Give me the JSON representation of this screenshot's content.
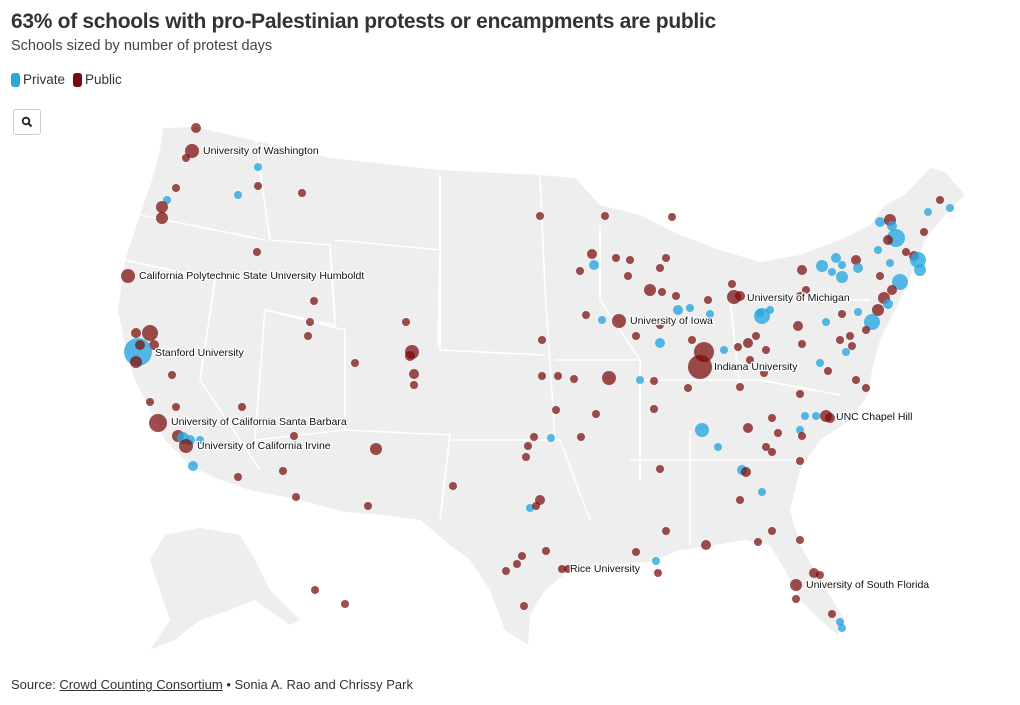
{
  "header": {
    "title": "63% of schools with pro-Palestinian protests or encampments are public",
    "subtitle": "Schools sized by number of protest days"
  },
  "legend": [
    {
      "label": "Private",
      "color": "#29a8e0"
    },
    {
      "label": "Public",
      "color": "#7a0a0a"
    }
  ],
  "controls": {
    "zoom_icon": "search-icon"
  },
  "labels": [
    "University of Washington",
    "California Polytechnic State University Humboldt",
    "Stanford University",
    "University of California Santa Barbara",
    "University of California Irvine",
    "University of Iowa",
    "University of Michigan",
    "Indiana University",
    "UNC Chapel Hill",
    "Rice University",
    "University of South Florida"
  ],
  "footer": {
    "source_prefix": "Source: ",
    "source_link": "Crowd Counting Consortium",
    "credits": " • Sonia A. Rao and Chrissy Park"
  },
  "colors": {
    "land": "#eeeeee",
    "border": "#ffffff",
    "private": "#29a8e0",
    "public": "#7a0a0a"
  }
}
